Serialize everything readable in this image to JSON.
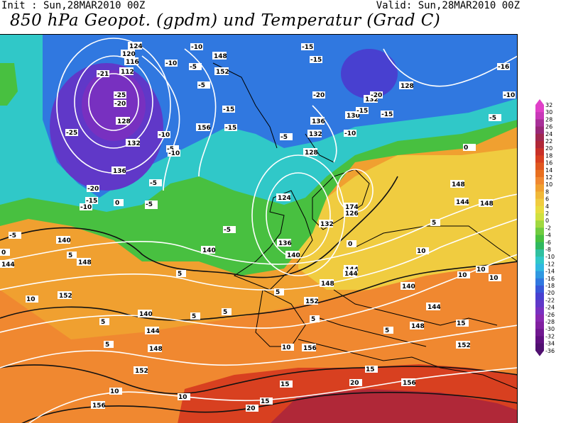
{
  "header": {
    "init": "Init : Sun,28MAR2010 00Z",
    "valid": "Valid: Sun,28MAR2010 00Z",
    "title": "850 hPa Geopot. (gpdm) und Temperatur (Grad C)"
  },
  "legend": {
    "values": [
      "32",
      "30",
      "28",
      "26",
      "24",
      "22",
      "20",
      "18",
      "16",
      "14",
      "12",
      "10",
      "8",
      "6",
      "4",
      "2",
      "0",
      "-2",
      "-4",
      "-6",
      "-8",
      "-10",
      "-12",
      "-14",
      "-16",
      "-18",
      "-20",
      "-22",
      "-24",
      "-26",
      "-28",
      "-30",
      "-32",
      "-34",
      "-36"
    ],
    "colors": [
      "#e040c8",
      "#c838b8",
      "#a83098",
      "#982878",
      "#a02850",
      "#b02838",
      "#c83028",
      "#d84020",
      "#e05820",
      "#e87020",
      "#f08830",
      "#f0a030",
      "#f0b838",
      "#f0cc40",
      "#e8dc40",
      "#d0e040",
      "#a0d840",
      "#70cc40",
      "#48c040",
      "#30b860",
      "#30c0a0",
      "#30c8c8",
      "#30b8e0",
      "#3098e0",
      "#3078e0",
      "#3858d8",
      "#4840d0",
      "#6038c8",
      "#7830c0",
      "#8828b0",
      "#8020a0",
      "#701890",
      "#601080",
      "#501070"
    ]
  },
  "map": {
    "geopotential_labels": [
      "124",
      "120",
      "116",
      "112",
      "128",
      "132",
      "136",
      "148",
      "152",
      "156",
      "132",
      "136",
      "128",
      "130",
      "132",
      "148",
      "144",
      "148",
      "128",
      "124",
      "174",
      "126",
      "132",
      "136",
      "140",
      "140",
      "144",
      "144",
      "140",
      "148",
      "152",
      "144",
      "140",
      "144",
      "148",
      "152",
      "140",
      "148",
      "152",
      "156",
      "156",
      "148",
      "152",
      "156",
      "144",
      "148",
      "128",
      "124",
      "124"
    ],
    "temperature_labels": [
      "-21",
      "-25",
      "-20",
      "-25",
      "-20",
      "-15",
      "-10",
      "-10",
      "-10",
      "-5",
      "-15",
      "-5",
      "-10",
      "-5",
      "-10",
      "-15",
      "-5",
      "-15",
      "-20",
      "-20",
      "-15",
      "-15",
      "-16",
      "-10",
      "-5",
      "0",
      "-10",
      "-5",
      "-15",
      "-5",
      "-5",
      "0",
      "5",
      "5",
      "10",
      "10",
      "5",
      "5",
      "0",
      "5",
      "5",
      "5",
      "10",
      "5",
      "10",
      "10",
      "15",
      "15",
      "20",
      "10",
      "15",
      "15",
      "10",
      "20",
      "-5",
      "0",
      "5",
      "5",
      "10",
      "-5"
    ]
  }
}
